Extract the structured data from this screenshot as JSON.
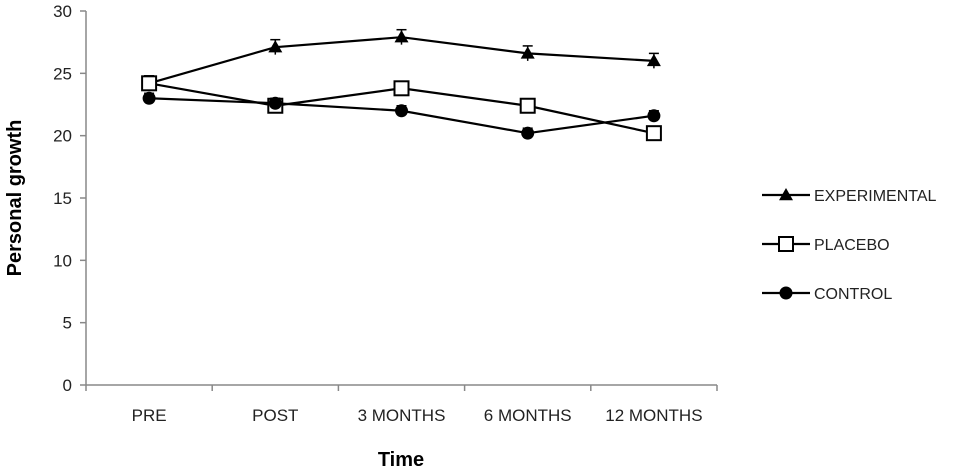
{
  "chart_data": {
    "type": "line",
    "title": "",
    "xlabel": "Time",
    "ylabel": "Personal growth",
    "categories": [
      "PRE",
      "POST",
      "3 MONTHS",
      "6 MONTHS",
      "12 MONTHS"
    ],
    "ylim": [
      0,
      30
    ],
    "yticks": [
      "0",
      "5",
      "10",
      "15",
      "20",
      "25",
      "30"
    ],
    "grid": false,
    "legend_position": "right",
    "series": [
      {
        "name": "EXPERIMENTAL",
        "marker": "triangle",
        "values": [
          24.2,
          27.1,
          27.9,
          26.6,
          26.0
        ],
        "error": [
          0.6,
          0.6,
          0.6,
          0.6,
          0.6
        ],
        "color": "#000000"
      },
      {
        "name": "PLACEBO",
        "marker": "square-open",
        "values": [
          24.2,
          22.4,
          23.8,
          22.4,
          20.2
        ],
        "error": [
          0.6,
          0.5,
          0.5,
          0.5,
          0.5
        ],
        "color": "#000000"
      },
      {
        "name": "CONTROL",
        "marker": "circle",
        "values": [
          23.0,
          22.6,
          22.0,
          20.2,
          21.6
        ],
        "error": [
          0.4,
          0.4,
          0.4,
          0.4,
          0.4
        ],
        "color": "#000000"
      }
    ]
  }
}
